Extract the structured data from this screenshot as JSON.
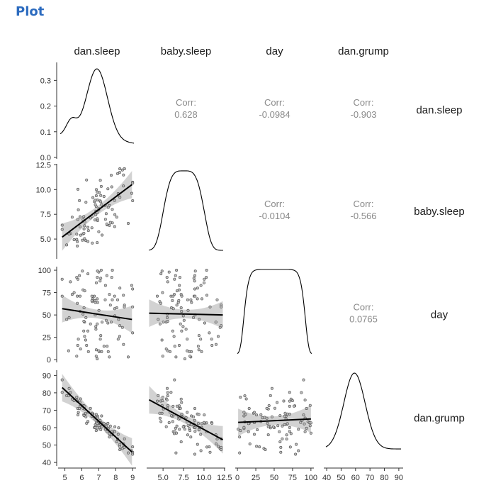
{
  "heading": "Plot",
  "chart_data": {
    "type": "scatter-matrix",
    "variables": [
      "dan.sleep",
      "baby.sleep",
      "day",
      "dan.grump"
    ],
    "ranges": {
      "dan.sleep": [
        4.6,
        9.2
      ],
      "baby.sleep": [
        3.0,
        12.6
      ],
      "day": [
        -3,
        104
      ],
      "dan.grump": [
        38,
        93
      ]
    },
    "ticks": {
      "dan.sleep": [
        "5",
        "6",
        "7",
        "8",
        "9"
      ],
      "baby.sleep": [
        "5.0",
        "7.5",
        "10.0",
        "12.5"
      ],
      "day": [
        "0",
        "25",
        "50",
        "75",
        "100"
      ],
      "dan.grump": [
        "40",
        "50",
        "60",
        "70",
        "80",
        "90"
      ]
    },
    "density_axis": {
      "ticks": [
        "0.0",
        "0.1",
        "0.2",
        "0.3"
      ],
      "range": [
        0,
        0.37
      ]
    },
    "correlations": [
      {
        "row": "dan.sleep",
        "col": "baby.sleep",
        "label": "Corr:",
        "value": "0.628"
      },
      {
        "row": "dan.sleep",
        "col": "day",
        "label": "Corr:",
        "value": "-0.0984"
      },
      {
        "row": "dan.sleep",
        "col": "dan.grump",
        "label": "Corr:",
        "value": "-0.903"
      },
      {
        "row": "baby.sleep",
        "col": "day",
        "label": "Corr:",
        "value": "-0.0104"
      },
      {
        "row": "baby.sleep",
        "col": "dan.grump",
        "label": "Corr:",
        "value": "-0.566"
      },
      {
        "row": "day",
        "col": "dan.grump",
        "label": "Corr:",
        "value": "0.0765"
      }
    ],
    "fits": [
      {
        "row": "baby.sleep",
        "col": "dan.sleep",
        "x": [
          4.84,
          8.96
        ],
        "y": [
          5.2,
          10.5
        ]
      },
      {
        "row": "day",
        "col": "dan.sleep",
        "x": [
          4.84,
          8.96
        ],
        "y": [
          57,
          45
        ]
      },
      {
        "row": "day",
        "col": "baby.sleep",
        "x": [
          3.3,
          12.3
        ],
        "y": [
          52,
          50
        ]
      },
      {
        "row": "dan.grump",
        "col": "dan.sleep",
        "x": [
          4.84,
          8.96
        ],
        "y": [
          83,
          46
        ]
      },
      {
        "row": "dan.grump",
        "col": "baby.sleep",
        "x": [
          3.3,
          12.3
        ],
        "y": [
          76,
          53
        ]
      },
      {
        "row": "dan.grump",
        "col": "day",
        "x": [
          1,
          100
        ],
        "y": [
          63,
          65
        ]
      }
    ]
  }
}
